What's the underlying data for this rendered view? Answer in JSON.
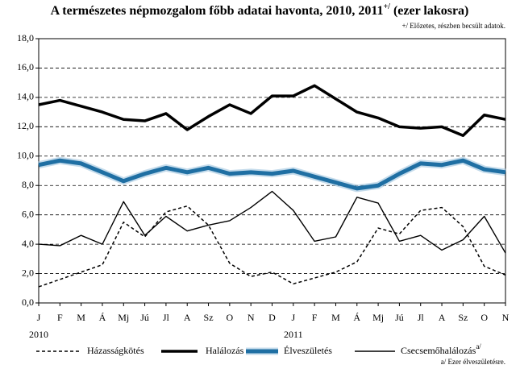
{
  "chart_data": {
    "type": "line",
    "title": "A természetes népmozgalom főbb adatai havonta, 2010, 2011",
    "title_sup": "+/",
    "title_suffix": " (ezer lakosra)",
    "note": "+/ Előzetes, részben becsült adatok.",
    "footnote": "a/ Ezer élveszületésre.",
    "categories": [
      "J",
      "F",
      "M",
      "Á",
      "Mj",
      "Jú",
      "Jl",
      "A",
      "Sz",
      "O",
      "N",
      "D",
      "J",
      "F",
      "M",
      "Á",
      "Mj",
      "Jú",
      "Jl",
      "A",
      "Sz",
      "O",
      "N"
    ],
    "years": [
      {
        "index": 0,
        "label": "2010"
      },
      {
        "index": 12,
        "label": "2011"
      }
    ],
    "ylim": [
      0,
      18
    ],
    "yticks": [
      {
        "value": 0,
        "label": "0,0"
      },
      {
        "value": 2,
        "label": "2,0"
      },
      {
        "value": 4,
        "label": "4,0"
      },
      {
        "value": 6,
        "label": "6,0"
      },
      {
        "value": 8,
        "label": "8,0"
      },
      {
        "value": 10,
        "label": "10,0"
      },
      {
        "value": 12,
        "label": "12,0"
      },
      {
        "value": 14,
        "label": "14,0"
      },
      {
        "value": 16,
        "label": "16,0"
      },
      {
        "value": 18,
        "label": "18,0"
      }
    ],
    "grid": true,
    "series": [
      {
        "name": "Házasságkötés",
        "color": "#000000",
        "style": "dashed",
        "values": [
          1.1,
          1.6,
          2.1,
          2.6,
          5.5,
          4.5,
          6.2,
          6.6,
          5.3,
          2.7,
          1.8,
          2.1,
          1.3,
          1.7,
          2.1,
          2.8,
          5.1,
          4.7,
          6.3,
          6.5,
          5.2,
          2.5,
          1.9
        ]
      },
      {
        "name": "Halálozás",
        "color": "#000000",
        "style": "bold",
        "values": [
          13.5,
          13.8,
          13.4,
          13.0,
          12.5,
          12.4,
          12.9,
          11.8,
          12.7,
          13.5,
          12.9,
          14.1,
          14.1,
          14.8,
          13.9,
          13.0,
          12.6,
          12.0,
          11.9,
          12.0,
          11.4,
          12.8,
          12.5
        ]
      },
      {
        "name": "Élveszületés",
        "color": "#1f6fa3",
        "style": "glow",
        "values": [
          9.4,
          9.7,
          9.5,
          8.9,
          8.3,
          8.8,
          9.2,
          8.9,
          9.2,
          8.8,
          8.9,
          8.8,
          9.0,
          8.6,
          8.2,
          7.8,
          8.0,
          8.8,
          9.5,
          9.4,
          9.7,
          9.1,
          8.9
        ]
      },
      {
        "name": "Csecsemőhalálozás",
        "name_sup": "a/",
        "color": "#000000",
        "style": "thin",
        "values": [
          4.0,
          3.9,
          4.6,
          4.0,
          6.9,
          4.6,
          5.9,
          4.9,
          5.3,
          5.6,
          6.5,
          7.6,
          6.3,
          4.2,
          4.5,
          7.2,
          6.8,
          4.2,
          4.6,
          3.6,
          4.3,
          5.9,
          3.4
        ]
      }
    ]
  }
}
